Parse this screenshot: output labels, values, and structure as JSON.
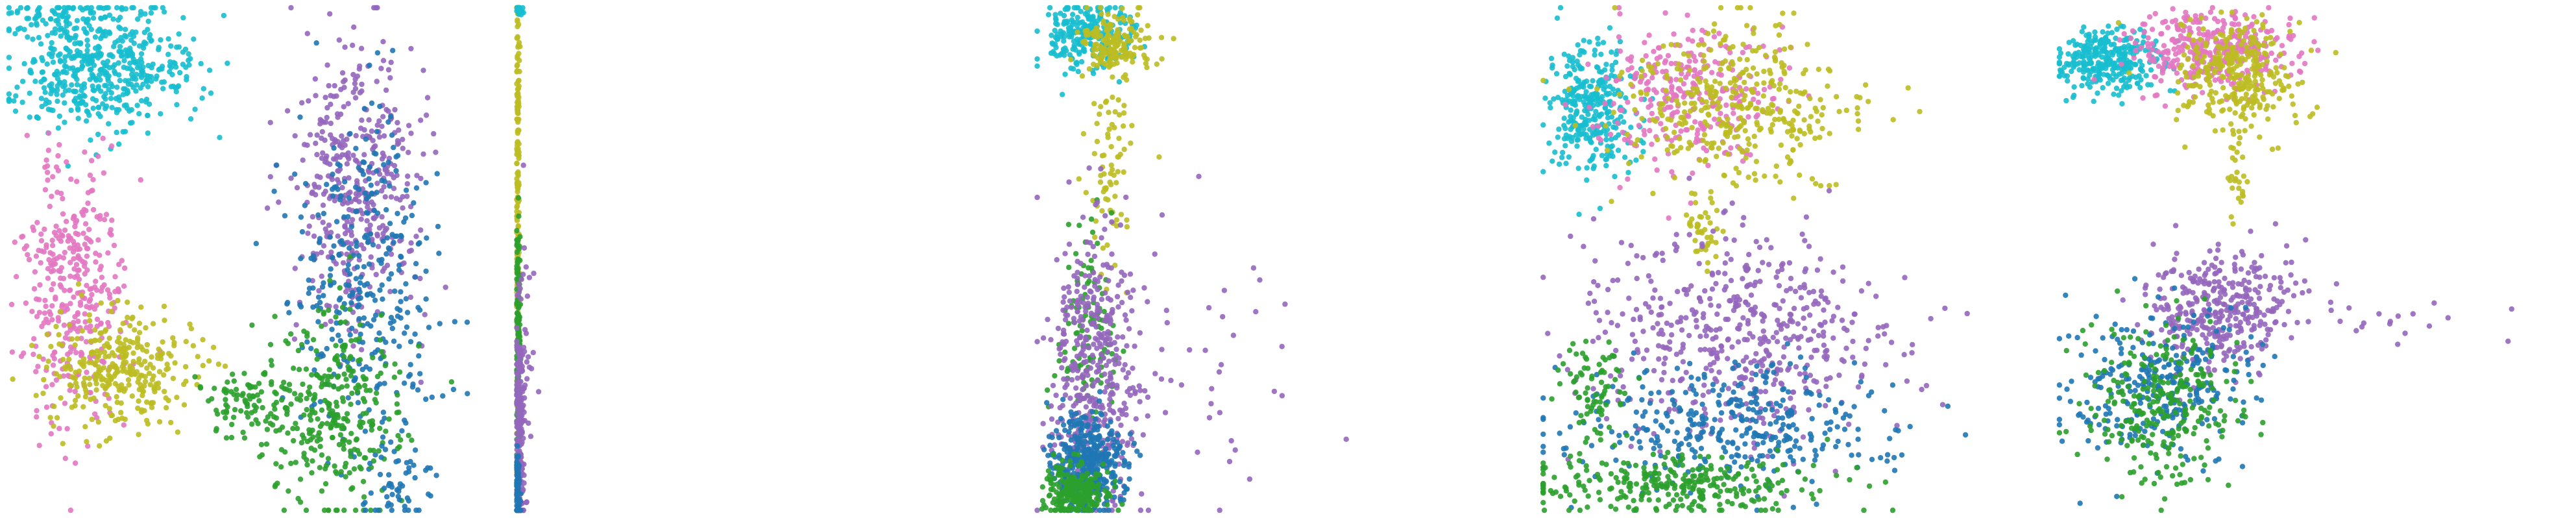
{
  "figure": {
    "title": "",
    "background": "#ffffff"
  },
  "palette": {
    "cyan": "#17becf",
    "pink": "#e377c2",
    "olive": "#bcbd22",
    "purple": "#9467bd",
    "blue": "#1f77b4",
    "green": "#2ca02c"
  },
  "chart_data": [
    {
      "type": "scatter",
      "title": "",
      "xlabel": "",
      "ylabel": "",
      "grid": false,
      "axes_visible": false,
      "legend": "none",
      "panel_index": 1,
      "clusters": [
        {
          "color": "cyan",
          "cx": 0.18,
          "cy": 0.88,
          "sx": 0.09,
          "sy": 0.06,
          "n": 520
        },
        {
          "color": "cyan",
          "cx": 0.08,
          "cy": 0.98,
          "sx": 0.05,
          "sy": 0.015,
          "n": 50
        },
        {
          "color": "pink",
          "cx": 0.13,
          "cy": 0.44,
          "sx": 0.05,
          "sy": 0.14,
          "n": 360
        },
        {
          "color": "olive",
          "cx": 0.22,
          "cy": 0.28,
          "sx": 0.07,
          "sy": 0.06,
          "n": 320
        },
        {
          "color": "purple",
          "cx": 0.68,
          "cy": 0.65,
          "sx": 0.06,
          "sy": 0.14,
          "n": 420
        },
        {
          "color": "blue",
          "cx": 0.7,
          "cy": 0.45,
          "sx": 0.07,
          "sy": 0.16,
          "n": 340
        },
        {
          "color": "green",
          "cx": 0.63,
          "cy": 0.2,
          "sx": 0.07,
          "sy": 0.1,
          "n": 320
        },
        {
          "color": "blue",
          "cx": 0.76,
          "cy": 0.06,
          "sx": 0.04,
          "sy": 0.04,
          "n": 50
        },
        {
          "color": "green",
          "cx": 0.46,
          "cy": 0.22,
          "sx": 0.04,
          "sy": 0.03,
          "n": 80
        }
      ]
    },
    {
      "type": "scatter",
      "title": "",
      "xlabel": "",
      "ylabel": "",
      "grid": false,
      "axes_visible": false,
      "legend": "none",
      "panel_index": 2,
      "clusters": [
        {
          "color": "olive",
          "cx": 0.01,
          "cy": 0.7,
          "sx": 0.004,
          "sy": 0.28,
          "n": 200
        },
        {
          "color": "cyan",
          "cx": 0.02,
          "cy": 0.99,
          "sx": 0.01,
          "sy": 0.005,
          "n": 20
        },
        {
          "color": "green",
          "cx": 0.012,
          "cy": 0.35,
          "sx": 0.006,
          "sy": 0.12,
          "n": 160
        },
        {
          "color": "purple",
          "cx": 0.018,
          "cy": 0.15,
          "sx": 0.012,
          "sy": 0.12,
          "n": 220
        },
        {
          "color": "blue",
          "cx": 0.01,
          "cy": 0.05,
          "sx": 0.006,
          "sy": 0.04,
          "n": 80
        },
        {
          "color": "purple",
          "cx": 0.05,
          "cy": 0.3,
          "sx": 0.03,
          "sy": 0.2,
          "n": 25
        }
      ]
    },
    {
      "type": "scatter",
      "title": "",
      "xlabel": "",
      "ylabel": "",
      "grid": false,
      "axes_visible": false,
      "legend": "none",
      "panel_index": 3,
      "clusters": [
        {
          "color": "cyan",
          "cx": 0.12,
          "cy": 0.94,
          "sx": 0.05,
          "sy": 0.035,
          "n": 260
        },
        {
          "color": "olive",
          "cx": 0.17,
          "cy": 0.93,
          "sx": 0.04,
          "sy": 0.03,
          "n": 160
        },
        {
          "color": "olive",
          "cx": 0.17,
          "cy": 0.68,
          "sx": 0.03,
          "sy": 0.1,
          "n": 80
        },
        {
          "color": "green",
          "cx": 0.12,
          "cy": 0.35,
          "sx": 0.03,
          "sy": 0.1,
          "n": 120
        },
        {
          "color": "purple",
          "cx": 0.13,
          "cy": 0.28,
          "sx": 0.05,
          "sy": 0.14,
          "n": 420
        },
        {
          "color": "blue",
          "cx": 0.12,
          "cy": 0.1,
          "sx": 0.04,
          "sy": 0.05,
          "n": 360
        },
        {
          "color": "green",
          "cx": 0.09,
          "cy": 0.04,
          "sx": 0.035,
          "sy": 0.03,
          "n": 240
        },
        {
          "color": "purple",
          "cx": 0.35,
          "cy": 0.3,
          "sx": 0.14,
          "sy": 0.15,
          "n": 45
        }
      ]
    },
    {
      "type": "scatter",
      "title": "",
      "xlabel": "",
      "ylabel": "",
      "grid": false,
      "axes_visible": false,
      "legend": "none",
      "panel_index": 4,
      "clusters": [
        {
          "color": "cyan",
          "cx": 0.12,
          "cy": 0.8,
          "sx": 0.05,
          "sy": 0.07,
          "n": 320
        },
        {
          "color": "pink",
          "cx": 0.35,
          "cy": 0.82,
          "sx": 0.1,
          "sy": 0.07,
          "n": 300
        },
        {
          "color": "olive",
          "cx": 0.45,
          "cy": 0.8,
          "sx": 0.13,
          "sy": 0.08,
          "n": 380
        },
        {
          "color": "olive",
          "cx": 0.38,
          "cy": 0.55,
          "sx": 0.02,
          "sy": 0.03,
          "n": 40
        },
        {
          "color": "purple",
          "cx": 0.45,
          "cy": 0.35,
          "sx": 0.18,
          "sy": 0.1,
          "n": 520
        },
        {
          "color": "blue",
          "cx": 0.45,
          "cy": 0.17,
          "sx": 0.2,
          "sy": 0.06,
          "n": 360
        },
        {
          "color": "green",
          "cx": 0.3,
          "cy": 0.06,
          "sx": 0.18,
          "sy": 0.03,
          "n": 300
        },
        {
          "color": "green",
          "cx": 0.12,
          "cy": 0.25,
          "sx": 0.04,
          "sy": 0.06,
          "n": 80
        }
      ]
    },
    {
      "type": "scatter",
      "title": "",
      "xlabel": "",
      "ylabel": "",
      "grid": false,
      "axes_visible": false,
      "legend": "none",
      "panel_index": 5,
      "clusters": [
        {
          "color": "cyan",
          "cx": 0.1,
          "cy": 0.89,
          "sx": 0.05,
          "sy": 0.03,
          "n": 300
        },
        {
          "color": "pink",
          "cx": 0.3,
          "cy": 0.91,
          "sx": 0.07,
          "sy": 0.04,
          "n": 360
        },
        {
          "color": "olive",
          "cx": 0.35,
          "cy": 0.86,
          "sx": 0.06,
          "sy": 0.05,
          "n": 300
        },
        {
          "color": "olive",
          "cx": 0.35,
          "cy": 0.68,
          "sx": 0.01,
          "sy": 0.05,
          "n": 30
        },
        {
          "color": "purple",
          "cx": 0.32,
          "cy": 0.4,
          "sx": 0.07,
          "sy": 0.06,
          "n": 360
        },
        {
          "color": "blue",
          "cx": 0.2,
          "cy": 0.25,
          "sx": 0.09,
          "sy": 0.07,
          "n": 300
        },
        {
          "color": "green",
          "cx": 0.2,
          "cy": 0.22,
          "sx": 0.07,
          "sy": 0.08,
          "n": 280
        },
        {
          "color": "purple",
          "cx": 0.65,
          "cy": 0.38,
          "sx": 0.1,
          "sy": 0.02,
          "n": 20
        }
      ]
    }
  ]
}
